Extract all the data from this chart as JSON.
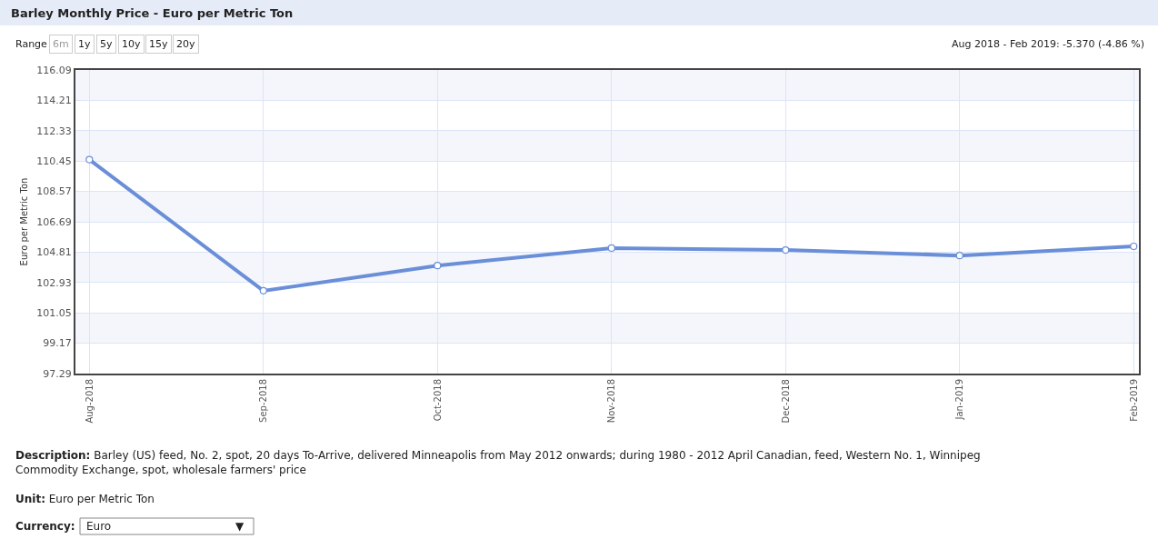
{
  "chart_data": {
    "type": "line",
    "title": "Barley Monthly Price - Euro per Metric Ton",
    "ylabel": "Euro per Metric Ton",
    "categories": [
      "Aug-2018",
      "Sep-2018",
      "Oct-2018",
      "Nov-2018",
      "Dec-2018",
      "Jan-2019",
      "Feb-2019"
    ],
    "series": [
      {
        "color": "#6a8fd8",
        "values": [
          110.54,
          102.42,
          103.98,
          105.06,
          104.94,
          104.6,
          105.17
        ]
      }
    ],
    "ylim": [
      97.29,
      116.09
    ],
    "yticks": [
      97.29,
      99.17,
      101.05,
      102.93,
      104.81,
      106.69,
      108.57,
      110.45,
      112.33,
      114.21,
      116.09
    ],
    "bands": [
      {
        "axis": "y",
        "from": 114.21,
        "to": 116.09,
        "color": "#f4f6fb"
      },
      {
        "axis": "y",
        "from": 110.45,
        "to": 112.33,
        "color": "#f4f6fb"
      },
      {
        "axis": "y",
        "from": 106.69,
        "to": 108.57,
        "color": "#f4f6fb"
      },
      {
        "axis": "y",
        "from": 102.93,
        "to": 104.81,
        "color": "#f4f6fb"
      },
      {
        "axis": "y",
        "from": 99.17,
        "to": 101.05,
        "color": "#f4f6fb"
      }
    ],
    "grid": true,
    "marker": "circle",
    "line_style": "solid",
    "annotations": [
      "Range",
      "6m",
      "1y",
      "5y",
      "10y",
      "15y",
      "20y",
      "Aug 2018 - Feb 2019: -5.370 (-4.86 %)",
      "Description: Barley (US) feed, No. 2, spot, 20 days To-Arrive, delivered Minneapolis from May 2012 onwards; during 1980 - 2012 April Canadian, feed, Western No. 1, Winnipeg Commodity Exchange, spot, wholesale farmers' price",
      "Unit: Euro per Metric Ton",
      "Currency:",
      "Euro",
      "▼"
    ]
  }
}
